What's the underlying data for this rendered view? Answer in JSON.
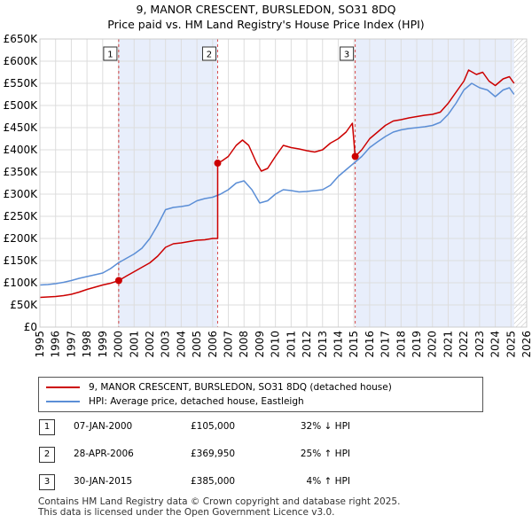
{
  "title_line1": "9, MANOR CRESCENT, BURSLEDON, SO31 8DQ",
  "title_line2": "Price paid vs. HM Land Registry's House Price Index (HPI)",
  "chart_data": {
    "type": "line",
    "xlim": [
      1995,
      2026
    ],
    "ylim": [
      0,
      650000
    ],
    "y_ticks": [
      0,
      50000,
      100000,
      150000,
      200000,
      250000,
      300000,
      350000,
      400000,
      450000,
      500000,
      550000,
      600000,
      650000
    ],
    "y_tick_labels": [
      "£0",
      "£50K",
      "£100K",
      "£150K",
      "£200K",
      "£250K",
      "£300K",
      "£350K",
      "£400K",
      "£450K",
      "£500K",
      "£550K",
      "£600K",
      "£650K"
    ],
    "x_ticks": [
      1995,
      1996,
      1997,
      1998,
      1999,
      2000,
      2001,
      2002,
      2003,
      2004,
      2005,
      2006,
      2007,
      2008,
      2009,
      2010,
      2011,
      2012,
      2013,
      2014,
      2015,
      2016,
      2017,
      2018,
      2019,
      2020,
      2021,
      2022,
      2023,
      2024,
      2025,
      2026
    ],
    "x_tick_labels": [
      "1995",
      "1996",
      "1997",
      "1998",
      "1999",
      "2000",
      "2001",
      "2002",
      "2003",
      "2004",
      "2005",
      "2006",
      "2007",
      "2008",
      "2009",
      "2010",
      "2011",
      "2012",
      "2013",
      "2014",
      "2015",
      "2016",
      "2017",
      "2018",
      "2019",
      "2020",
      "2021",
      "2022",
      "2023",
      "2024",
      "2025",
      "2026"
    ],
    "grid": true,
    "shaded_periods": [
      [
        2000.02,
        2006.32
      ],
      [
        2015.08,
        2025.2
      ]
    ],
    "data_end_year": 2025.2,
    "series": [
      {
        "name": "9, MANOR CRESCENT, BURSLEDON, SO31 8DQ (detached house)",
        "color": "#cc0000",
        "points": [
          [
            1995.0,
            67000
          ],
          [
            1995.5,
            68000
          ],
          [
            1996.0,
            69000
          ],
          [
            1996.5,
            71000
          ],
          [
            1997.0,
            74000
          ],
          [
            1997.5,
            79000
          ],
          [
            1998.0,
            85000
          ],
          [
            1998.5,
            90000
          ],
          [
            1999.0,
            95000
          ],
          [
            1999.5,
            99000
          ],
          [
            2000.02,
            105000
          ],
          [
            2000.5,
            115000
          ],
          [
            2001.0,
            125000
          ],
          [
            2001.5,
            135000
          ],
          [
            2002.0,
            145000
          ],
          [
            2002.5,
            160000
          ],
          [
            2003.0,
            180000
          ],
          [
            2003.5,
            188000
          ],
          [
            2004.0,
            190000
          ],
          [
            2004.5,
            193000
          ],
          [
            2005.0,
            196000
          ],
          [
            2005.5,
            197000
          ],
          [
            2006.0,
            200000
          ],
          [
            2006.32,
            200000
          ],
          [
            2006.32,
            369950
          ],
          [
            2006.6,
            375000
          ],
          [
            2007.0,
            385000
          ],
          [
            2007.5,
            410000
          ],
          [
            2007.9,
            422000
          ],
          [
            2008.3,
            410000
          ],
          [
            2008.8,
            370000
          ],
          [
            2009.1,
            352000
          ],
          [
            2009.5,
            358000
          ],
          [
            2010.0,
            385000
          ],
          [
            2010.5,
            410000
          ],
          [
            2011.0,
            405000
          ],
          [
            2011.5,
            402000
          ],
          [
            2012.0,
            398000
          ],
          [
            2012.5,
            395000
          ],
          [
            2013.0,
            400000
          ],
          [
            2013.5,
            415000
          ],
          [
            2014.0,
            425000
          ],
          [
            2014.5,
            440000
          ],
          [
            2014.9,
            460000
          ],
          [
            2015.08,
            385000
          ],
          [
            2015.5,
            400000
          ],
          [
            2016.0,
            425000
          ],
          [
            2016.5,
            440000
          ],
          [
            2017.0,
            455000
          ],
          [
            2017.5,
            465000
          ],
          [
            2018.0,
            468000
          ],
          [
            2018.5,
            472000
          ],
          [
            2019.0,
            475000
          ],
          [
            2019.5,
            478000
          ],
          [
            2020.0,
            480000
          ],
          [
            2020.5,
            485000
          ],
          [
            2021.0,
            505000
          ],
          [
            2021.5,
            530000
          ],
          [
            2022.0,
            555000
          ],
          [
            2022.3,
            580000
          ],
          [
            2022.8,
            570000
          ],
          [
            2023.2,
            575000
          ],
          [
            2023.6,
            555000
          ],
          [
            2024.0,
            545000
          ],
          [
            2024.5,
            560000
          ],
          [
            2024.9,
            565000
          ],
          [
            2025.2,
            550000
          ]
        ]
      },
      {
        "name": "HPI: Average price, detached house, Eastleigh",
        "color": "#5b8ed6",
        "points": [
          [
            1995.0,
            95000
          ],
          [
            1995.5,
            96000
          ],
          [
            1996.0,
            98000
          ],
          [
            1996.5,
            101000
          ],
          [
            1997.0,
            105000
          ],
          [
            1997.5,
            110000
          ],
          [
            1998.0,
            114000
          ],
          [
            1998.5,
            118000
          ],
          [
            1999.0,
            122000
          ],
          [
            1999.5,
            132000
          ],
          [
            2000.0,
            145000
          ],
          [
            2000.5,
            155000
          ],
          [
            2001.0,
            165000
          ],
          [
            2001.5,
            178000
          ],
          [
            2002.0,
            200000
          ],
          [
            2002.5,
            230000
          ],
          [
            2003.0,
            265000
          ],
          [
            2003.5,
            270000
          ],
          [
            2004.0,
            272000
          ],
          [
            2004.5,
            275000
          ],
          [
            2005.0,
            285000
          ],
          [
            2005.5,
            290000
          ],
          [
            2006.0,
            293000
          ],
          [
            2006.5,
            300000
          ],
          [
            2007.0,
            310000
          ],
          [
            2007.5,
            325000
          ],
          [
            2008.0,
            330000
          ],
          [
            2008.5,
            310000
          ],
          [
            2009.0,
            280000
          ],
          [
            2009.5,
            285000
          ],
          [
            2010.0,
            300000
          ],
          [
            2010.5,
            310000
          ],
          [
            2011.0,
            308000
          ],
          [
            2011.5,
            305000
          ],
          [
            2012.0,
            306000
          ],
          [
            2012.5,
            308000
          ],
          [
            2013.0,
            310000
          ],
          [
            2013.5,
            320000
          ],
          [
            2014.0,
            340000
          ],
          [
            2014.5,
            355000
          ],
          [
            2015.0,
            370000
          ],
          [
            2015.5,
            385000
          ],
          [
            2016.0,
            405000
          ],
          [
            2016.5,
            418000
          ],
          [
            2017.0,
            430000
          ],
          [
            2017.5,
            440000
          ],
          [
            2018.0,
            445000
          ],
          [
            2018.5,
            448000
          ],
          [
            2019.0,
            450000
          ],
          [
            2019.5,
            452000
          ],
          [
            2020.0,
            455000
          ],
          [
            2020.5,
            462000
          ],
          [
            2021.0,
            480000
          ],
          [
            2021.5,
            505000
          ],
          [
            2022.0,
            535000
          ],
          [
            2022.5,
            550000
          ],
          [
            2023.0,
            540000
          ],
          [
            2023.5,
            535000
          ],
          [
            2024.0,
            520000
          ],
          [
            2024.5,
            535000
          ],
          [
            2024.9,
            540000
          ],
          [
            2025.2,
            525000
          ]
        ]
      }
    ],
    "transactions": [
      {
        "id": "1",
        "x": 2000.02,
        "price": 105000,
        "date": "07-JAN-2000",
        "price_label": "£105,000",
        "hpi": "32% ↓ HPI"
      },
      {
        "id": "2",
        "x": 2006.32,
        "price": 369950,
        "date": "28-APR-2006",
        "price_label": "£369,950",
        "hpi": "25% ↑ HPI"
      },
      {
        "id": "3",
        "x": 2015.08,
        "price": 385000,
        "date": "30-JAN-2015",
        "price_label": "£385,000",
        "hpi": "4% ↑ HPI"
      }
    ],
    "legend": [
      {
        "label": "9, MANOR CRESCENT, BURSLEDON, SO31 8DQ (detached house)",
        "color": "#cc0000"
      },
      {
        "label": "HPI: Average price, detached house, Eastleigh",
        "color": "#5b8ed6"
      }
    ]
  },
  "footer": {
    "line1": "Contains HM Land Registry data © Crown copyright and database right 2025.",
    "line2": "This data is licensed under the Open Government Licence v3.0."
  }
}
